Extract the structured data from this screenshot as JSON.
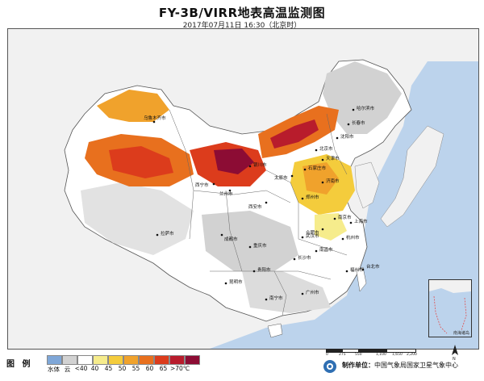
{
  "header": {
    "title": "FY-3B/VIRR地表高温监测图",
    "subtitle": "2017年07月11日 16:30（北京时）"
  },
  "legend": {
    "title": "图 例",
    "items": [
      {
        "label": "水体",
        "color": "#7fa7d8"
      },
      {
        "label": "云",
        "color": "#d2d2d2"
      },
      {
        "label": "<40",
        "color": "#ffffff"
      },
      {
        "label": "40",
        "color": "#f6ec8c"
      },
      {
        "label": "45",
        "color": "#f4cc3c"
      },
      {
        "label": "50",
        "color": "#f0a22c"
      },
      {
        "label": "55",
        "color": "#e8701e"
      },
      {
        "label": "60",
        "color": "#dc3c1c"
      },
      {
        "label": "65",
        "color": "#b81c2c"
      },
      {
        "label": ">70℃",
        "color": "#8c0c34"
      }
    ]
  },
  "map": {
    "cities": [
      {
        "name": "乌鲁木齐市"
      },
      {
        "name": "哈尔滨市"
      },
      {
        "name": "长春市"
      },
      {
        "name": "沈阳市"
      },
      {
        "name": "北京市"
      },
      {
        "name": "天津市"
      },
      {
        "name": "石家庄市"
      },
      {
        "name": "太原市"
      },
      {
        "name": "济南市"
      },
      {
        "name": "郑州市"
      },
      {
        "name": "西安市"
      },
      {
        "name": "兰州市"
      },
      {
        "name": "西宁市"
      },
      {
        "name": "银川市"
      },
      {
        "name": "南京市"
      },
      {
        "name": "合肥市"
      },
      {
        "name": "上海市"
      },
      {
        "name": "武汉市"
      },
      {
        "name": "杭州市"
      },
      {
        "name": "南昌市"
      },
      {
        "name": "长沙市"
      },
      {
        "name": "福州市"
      },
      {
        "name": "成都市"
      },
      {
        "name": "重庆市"
      },
      {
        "name": "贵阳市"
      },
      {
        "name": "昆明市"
      },
      {
        "name": "南宁市"
      },
      {
        "name": "广州市"
      },
      {
        "name": "拉萨市"
      },
      {
        "name": "台北市"
      }
    ],
    "inset_label": "南海诸岛",
    "scale_ticks": [
      "0",
      "275",
      "550",
      "1,100",
      "1,650",
      "2,200"
    ]
  },
  "credit": {
    "label": "制作单位：",
    "org": "中国气象局国家卫星气象中心"
  }
}
